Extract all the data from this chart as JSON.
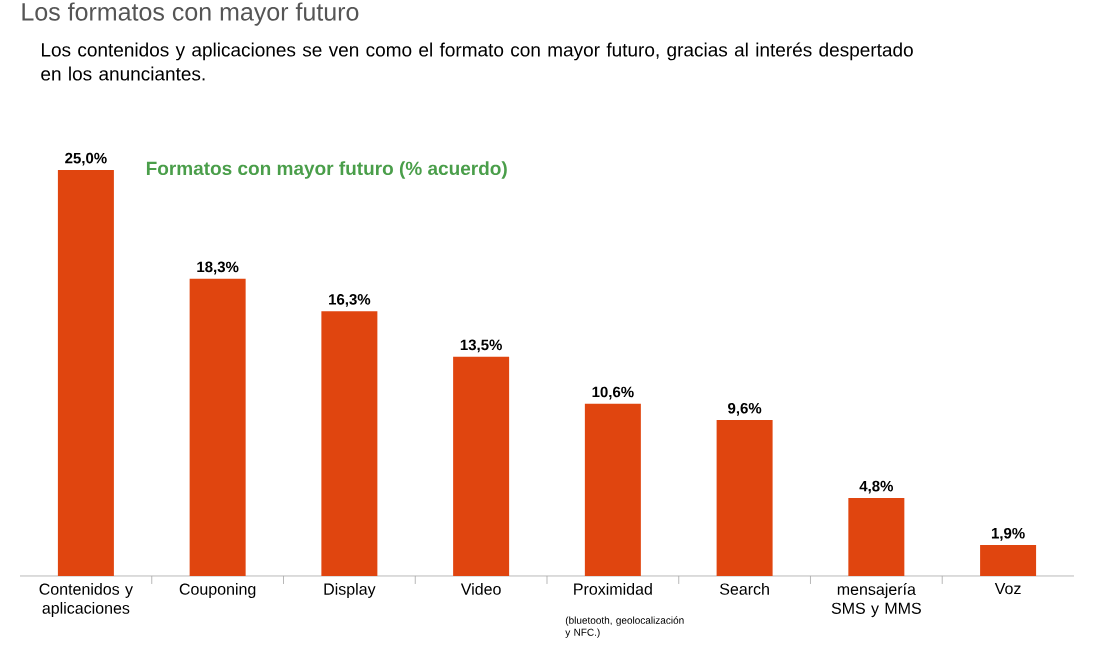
{
  "chart_data": {
    "type": "bar",
    "title": "Los formatos con mayor futuro",
    "subtitle": "Los contenidos y aplicaciones se ven como el formato con mayor futuro, gracias al interés despertado en los anunciantes.",
    "annotations": [
      "Formatos con mayor futuro (% acuerdo)",
      "(bluetooth, geolocalización y NFC.)"
    ],
    "categories": [
      "Contenidos y aplicaciones",
      "Couponing",
      "Display",
      "Video",
      "Proximidad",
      "Search",
      "mensajería SMS y MMS",
      "Voz"
    ],
    "values": [
      25.0,
      18.3,
      16.3,
      13.5,
      10.6,
      9.6,
      4.8,
      1.9
    ],
    "value_labels": [
      "25,0%",
      "18,3%",
      "16,3%",
      "13,5%",
      "10,6%",
      "9,6%",
      "4,8%",
      "1,9%"
    ],
    "color": "#e0450f"
  }
}
